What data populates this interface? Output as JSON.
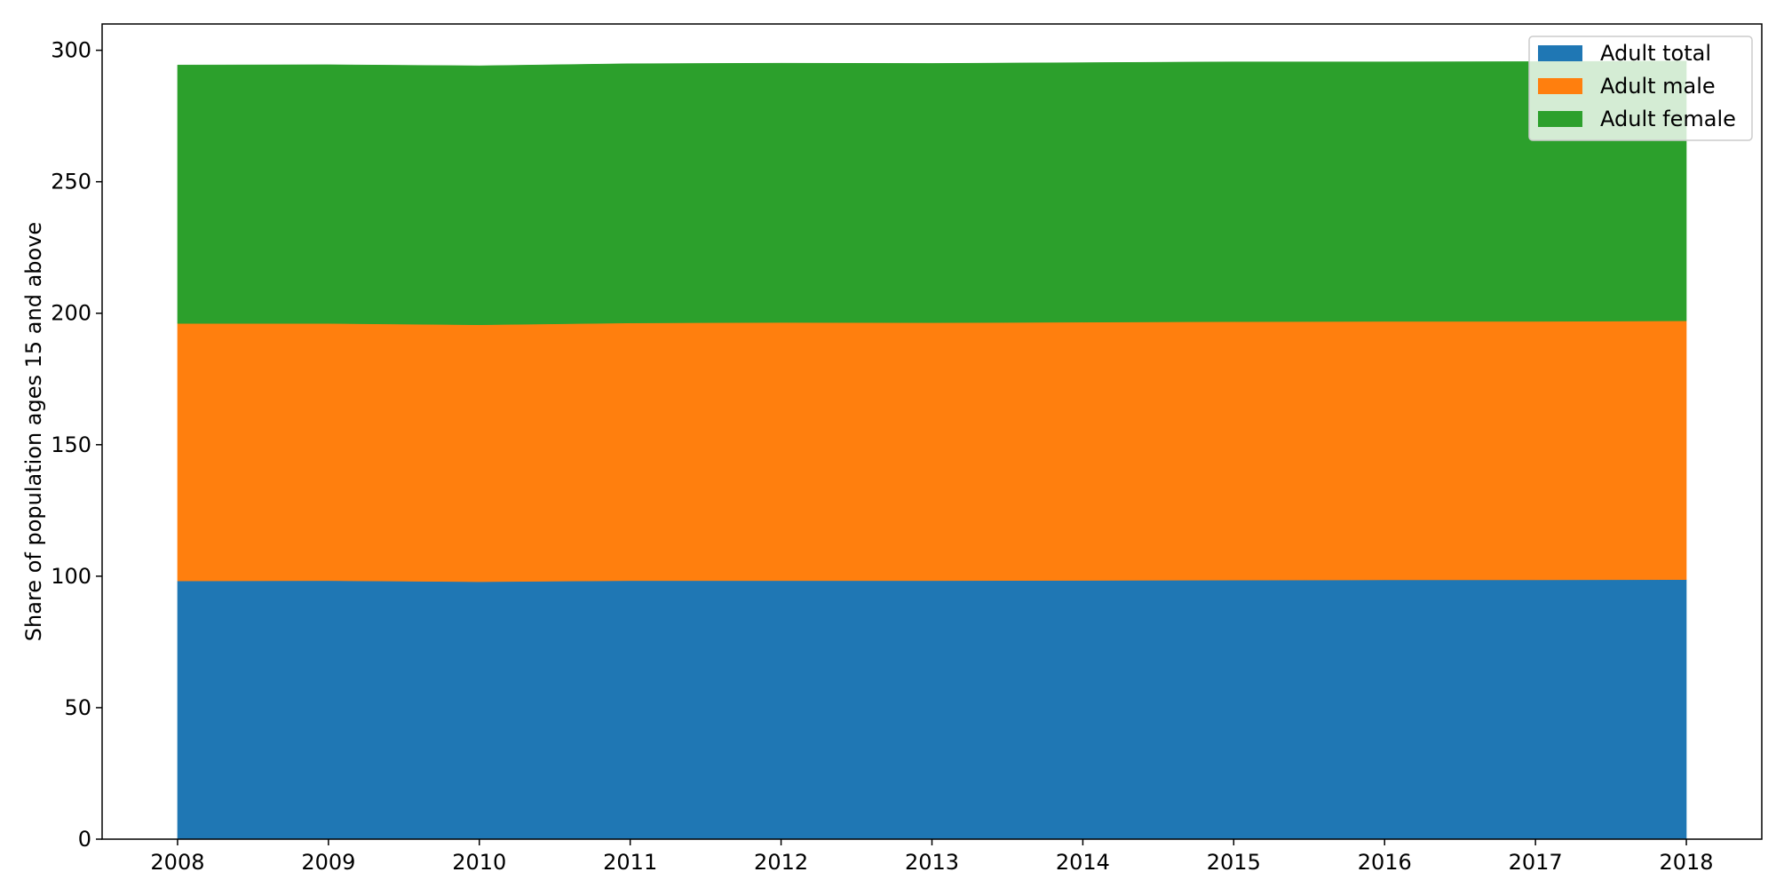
{
  "chart_data": {
    "type": "area",
    "stacked": true,
    "x": [
      2008,
      2009,
      2010,
      2011,
      2012,
      2013,
      2014,
      2015,
      2016,
      2017,
      2018
    ],
    "series": [
      {
        "name": "Adult total",
        "color": "#1f77b4",
        "values": [
          98.2,
          98.3,
          97.9,
          98.3,
          98.3,
          98.3,
          98.4,
          98.5,
          98.6,
          98.6,
          98.7
        ]
      },
      {
        "name": "Adult male",
        "color": "#ff7f0e",
        "values": [
          97.9,
          97.8,
          97.7,
          98.0,
          98.2,
          98.1,
          98.2,
          98.3,
          98.3,
          98.3,
          98.4
        ]
      },
      {
        "name": "Adult female",
        "color": "#2ca02c",
        "values": [
          98.3,
          98.4,
          98.5,
          98.6,
          98.6,
          98.6,
          98.7,
          98.8,
          98.7,
          98.8,
          98.8
        ]
      }
    ],
    "ylabel": "Share of population ages 15 and above",
    "xlabel": "",
    "title": "",
    "ylim": [
      0,
      310
    ],
    "xlim": [
      2007.5,
      2018.5
    ],
    "yticks": [
      0,
      50,
      100,
      150,
      200,
      250,
      300
    ],
    "xticks": [
      2008,
      2009,
      2010,
      2011,
      2012,
      2013,
      2014,
      2015,
      2016,
      2017,
      2018
    ],
    "grid": false,
    "legend_position": "top-right"
  }
}
